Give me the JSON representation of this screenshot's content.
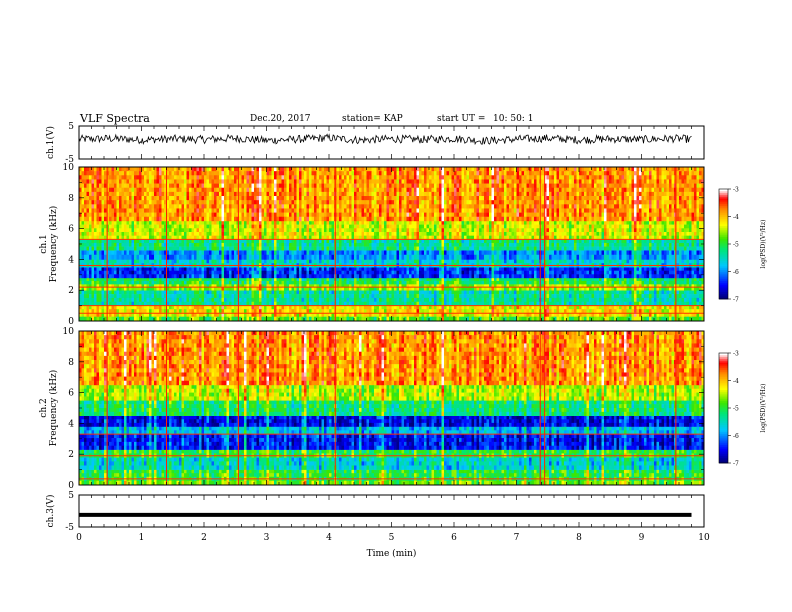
{
  "header": {
    "title": "VLF Spectra",
    "date": "Dec.20, 2017",
    "station": "station= KAP",
    "start_label": "start UT =",
    "start_time": "10: 50: 1"
  },
  "chart_data": [
    {
      "type": "line",
      "ylabel": "ch.1(V)",
      "ylim": [
        -5,
        5
      ],
      "yticks": [
        "5",
        "-5"
      ],
      "xlim": [
        0,
        10
      ],
      "description_of_signal": "noisy waveform around ~1 V with fluctuations of about +/-1.5 V",
      "x": [
        0.0,
        0.5,
        1.0,
        1.5,
        2.0,
        2.5,
        3.0,
        3.5,
        4.0,
        4.5,
        5.0,
        5.5,
        6.0,
        6.5,
        7.0,
        7.5,
        8.0,
        8.5,
        9.0,
        9.5,
        9.8
      ],
      "values": [
        1.0,
        1.2,
        0.8,
        1.1,
        0.9,
        1.3,
        0.6,
        1.0,
        1.4,
        0.7,
        1.1,
        0.9,
        1.2,
        0.5,
        1.0,
        1.3,
        0.8,
        1.1,
        0.9,
        1.2,
        1.0
      ]
    },
    {
      "type": "heatmap",
      "ylabel": "ch.1 Frequency (kHz)",
      "ylim": [
        0,
        10
      ],
      "yticks": [
        "0",
        "2",
        "4",
        "6",
        "8",
        "10"
      ],
      "xlim": [
        0,
        10
      ],
      "colorbar": {
        "label": "log(PSD)(V²/Hz)",
        "range": [
          -7,
          -3
        ],
        "ticks": [
          "-3",
          "-4",
          "-5",
          "-6",
          "-7"
        ]
      },
      "bands_khz": [
        {
          "from": 0,
          "to": 0.3,
          "level": -4.8
        },
        {
          "from": 0.3,
          "to": 1.0,
          "level": -4.2
        },
        {
          "from": 1.0,
          "to": 2.0,
          "level": -5.4
        },
        {
          "from": 2.0,
          "to": 2.4,
          "level": -4.6
        },
        {
          "from": 2.4,
          "to": 2.8,
          "level": -5.1
        },
        {
          "from": 2.8,
          "to": 3.5,
          "level": -6.4
        },
        {
          "from": 3.5,
          "to": 4.0,
          "level": -5.6
        },
        {
          "from": 4.0,
          "to": 4.6,
          "level": -6.0
        },
        {
          "from": 4.6,
          "to": 5.3,
          "level": -5.3
        },
        {
          "from": 5.3,
          "to": 6.5,
          "level": -4.4
        },
        {
          "from": 6.5,
          "to": 10.0,
          "level": -3.8
        }
      ],
      "horizontal_lines_khz": [
        0.5,
        1.0,
        2.2,
        3.6,
        5.3
      ]
    },
    {
      "type": "heatmap",
      "ylabel": "ch.2 Frequency (kHz)",
      "ylim": [
        0,
        10
      ],
      "yticks": [
        "0",
        "2",
        "4",
        "6",
        "8",
        "10"
      ],
      "xlim": [
        0,
        10
      ],
      "colorbar": {
        "label": "log(PSD)(V²/Hz)",
        "range": [
          -7,
          -3
        ],
        "ticks": [
          "-3",
          "-4",
          "-5",
          "-6",
          "-7"
        ]
      },
      "bands_khz": [
        {
          "from": 0,
          "to": 0.3,
          "level": -4.7
        },
        {
          "from": 0.3,
          "to": 1.0,
          "level": -5.0
        },
        {
          "from": 1.0,
          "to": 1.8,
          "level": -5.6
        },
        {
          "from": 1.8,
          "to": 2.3,
          "level": -5.0
        },
        {
          "from": 2.3,
          "to": 3.3,
          "level": -6.5
        },
        {
          "from": 3.3,
          "to": 3.8,
          "level": -5.8
        },
        {
          "from": 3.8,
          "to": 4.5,
          "level": -6.6
        },
        {
          "from": 4.5,
          "to": 5.5,
          "level": -5.2
        },
        {
          "from": 5.5,
          "to": 6.5,
          "level": -4.5
        },
        {
          "from": 6.5,
          "to": 10.0,
          "level": -3.8
        }
      ],
      "horizontal_lines_khz": [
        0.4,
        1.9,
        3.3
      ]
    },
    {
      "type": "line",
      "ylabel": "ch.3(V)",
      "ylim": [
        -5,
        5
      ],
      "yticks": [
        "5",
        "-5"
      ],
      "xlim": [
        0,
        10
      ],
      "x": [
        0,
        9.8
      ],
      "values": [
        -1.2,
        -1.2
      ]
    }
  ],
  "xaxis": {
    "label": "Time (min)",
    "ticks": [
      "0",
      "1",
      "2",
      "3",
      "4",
      "5",
      "6",
      "7",
      "8",
      "9",
      "10"
    ]
  },
  "colorbar_label": "log(PSD)(V²/Hz)"
}
